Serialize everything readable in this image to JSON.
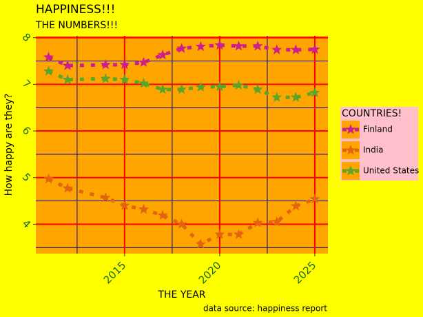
{
  "chart_data": {
    "type": "line",
    "title": "HAPPINESS!!!",
    "subtitle": "THE NUMBERS!!!",
    "xlabel": "THE YEAR",
    "ylabel": "How happy are they?",
    "caption": "data source: happiness report",
    "legend_title": "COUNTRIES!",
    "legend_position": "right",
    "x": [
      2011,
      2012,
      2014,
      2015,
      2016,
      2017,
      2018,
      2019,
      2020,
      2021,
      2022,
      2023,
      2024,
      2025
    ],
    "series": [
      {
        "name": "Finland",
        "color": "#cc1f8f",
        "values": [
          7.58,
          7.4,
          7.42,
          7.42,
          7.47,
          7.63,
          7.77,
          7.81,
          7.84,
          7.82,
          7.82,
          7.74,
          7.74,
          7.75
        ]
      },
      {
        "name": "India",
        "color": "#e2640e",
        "values": [
          4.97,
          4.77,
          4.57,
          4.4,
          4.32,
          4.19,
          4.0,
          3.57,
          3.78,
          3.78,
          4.03,
          4.05,
          4.39,
          4.54
        ]
      },
      {
        "name": "United States",
        "color": "#5aa52a",
        "values": [
          7.28,
          7.1,
          7.12,
          7.1,
          7.02,
          6.89,
          6.89,
          6.94,
          6.95,
          6.98,
          6.89,
          6.72,
          6.72,
          6.82
        ]
      }
    ],
    "xlim": [
      2010.33,
      2025.69
    ],
    "ylim": [
      3.37,
      8.04
    ],
    "xticks": [
      2015,
      2020,
      2025
    ],
    "yticks": [
      4,
      5,
      6,
      7,
      8
    ],
    "minor_xticks": [
      2012.5,
      2017.5,
      2022.5
    ],
    "minor_yticks": [
      3.5,
      4.5,
      5.5,
      6.5,
      7.5
    ],
    "grid": true,
    "grid_color": "#ff0000",
    "minor_grid_color": "#000080",
    "tick_label_color": "#1a6b1a"
  }
}
